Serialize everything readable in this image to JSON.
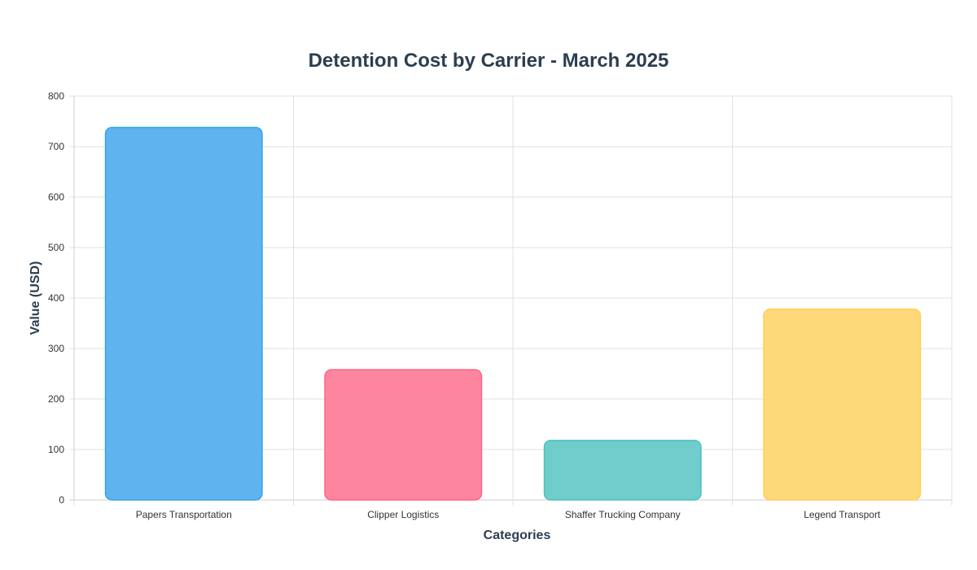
{
  "chart_data": {
    "type": "bar",
    "title": "Detention Cost by Carrier - March 2025",
    "xlabel": "Categories",
    "ylabel": "Value (USD)",
    "categories": [
      "Papers Transportation",
      "Clipper Logistics",
      "Shaffer Trucking Company",
      "Legend Transport"
    ],
    "values": [
      738,
      258,
      118,
      378
    ],
    "ylim": [
      0,
      800
    ],
    "yticks": [
      0,
      100,
      200,
      300,
      400,
      500,
      600,
      700,
      800
    ],
    "grid": true,
    "legend": "none",
    "colors": {
      "fills": [
        "#5fb3ef",
        "#fe859e",
        "#70cdcb",
        "#fed97a"
      ],
      "strokes": [
        "#36a2eb",
        "#ff6384",
        "#4bc0c0",
        "#ffce56"
      ],
      "title": "#2c3e50"
    }
  }
}
